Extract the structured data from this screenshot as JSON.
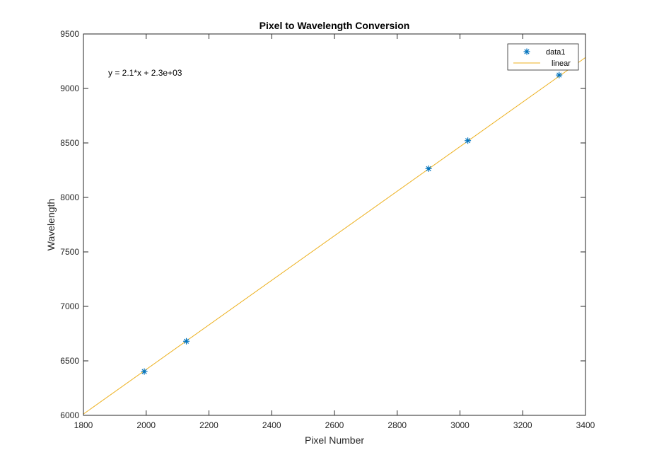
{
  "chart_data": {
    "type": "scatter",
    "title": "Pixel to Wavelength Conversion",
    "xlabel": "Pixel Number",
    "ylabel": "Wavelength",
    "xlim": [
      1800,
      3400
    ],
    "ylim": [
      6000,
      9500
    ],
    "xticks": [
      1800,
      2000,
      2200,
      2400,
      2600,
      2800,
      3000,
      3200,
      3400
    ],
    "yticks": [
      6000,
      6500,
      7000,
      7500,
      8000,
      8500,
      9000,
      9500
    ],
    "grid": false,
    "legend_position": "top-right",
    "annotation": "y = 2.1*x + 2.3e+03",
    "series": [
      {
        "name": "data1",
        "type": "scatter",
        "marker": "asterisk",
        "color": "#0072BD",
        "x": [
          1994,
          2128,
          2900,
          3025,
          3316
        ],
        "y": [
          6402,
          6680,
          8264,
          8521,
          9123
        ]
      },
      {
        "name": "linear",
        "type": "line",
        "color": "#EDB120",
        "x": [
          1800,
          3400
        ],
        "y": [
          6012,
          9284
        ]
      }
    ]
  }
}
